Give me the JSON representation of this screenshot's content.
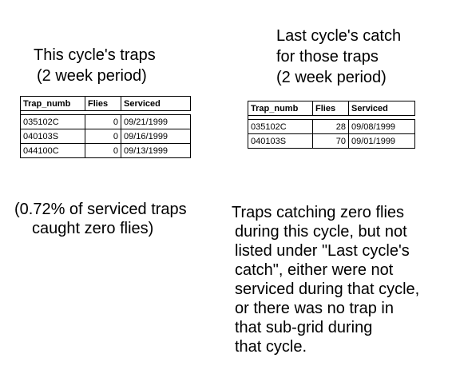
{
  "left_heading": {
    "line1": "This cycle's traps",
    "line2": "(2 week period)"
  },
  "right_heading": {
    "line1": "Last cycle's catch",
    "line2": "for those traps",
    "line3": "(2 week period)"
  },
  "columns": [
    "Trap_numb",
    "Flies",
    "Serviced"
  ],
  "this_cycle_rows": [
    {
      "trap": "035102C",
      "flies": "0",
      "serviced": "09/21/1999"
    },
    {
      "trap": "040103S",
      "flies": "0",
      "serviced": "09/16/1999"
    },
    {
      "trap": "044100C",
      "flies": "0",
      "serviced": "09/13/1999"
    }
  ],
  "last_cycle_rows": [
    {
      "trap": "035102C",
      "flies": "28",
      "serviced": "09/08/1999"
    },
    {
      "trap": "040103S",
      "flies": "70",
      "serviced": "09/01/1999"
    }
  ],
  "left_note": {
    "line1": "(0.72% of serviced traps",
    "line2": "caught zero flies)"
  },
  "right_note": {
    "lines": [
      "Traps catching zero flies",
      "during this cycle, but not",
      "listed under \"Last cycle's",
      "catch\", either were not",
      "serviced during that cycle,",
      "or there was no trap in",
      "that sub-grid during",
      "that cycle."
    ]
  }
}
